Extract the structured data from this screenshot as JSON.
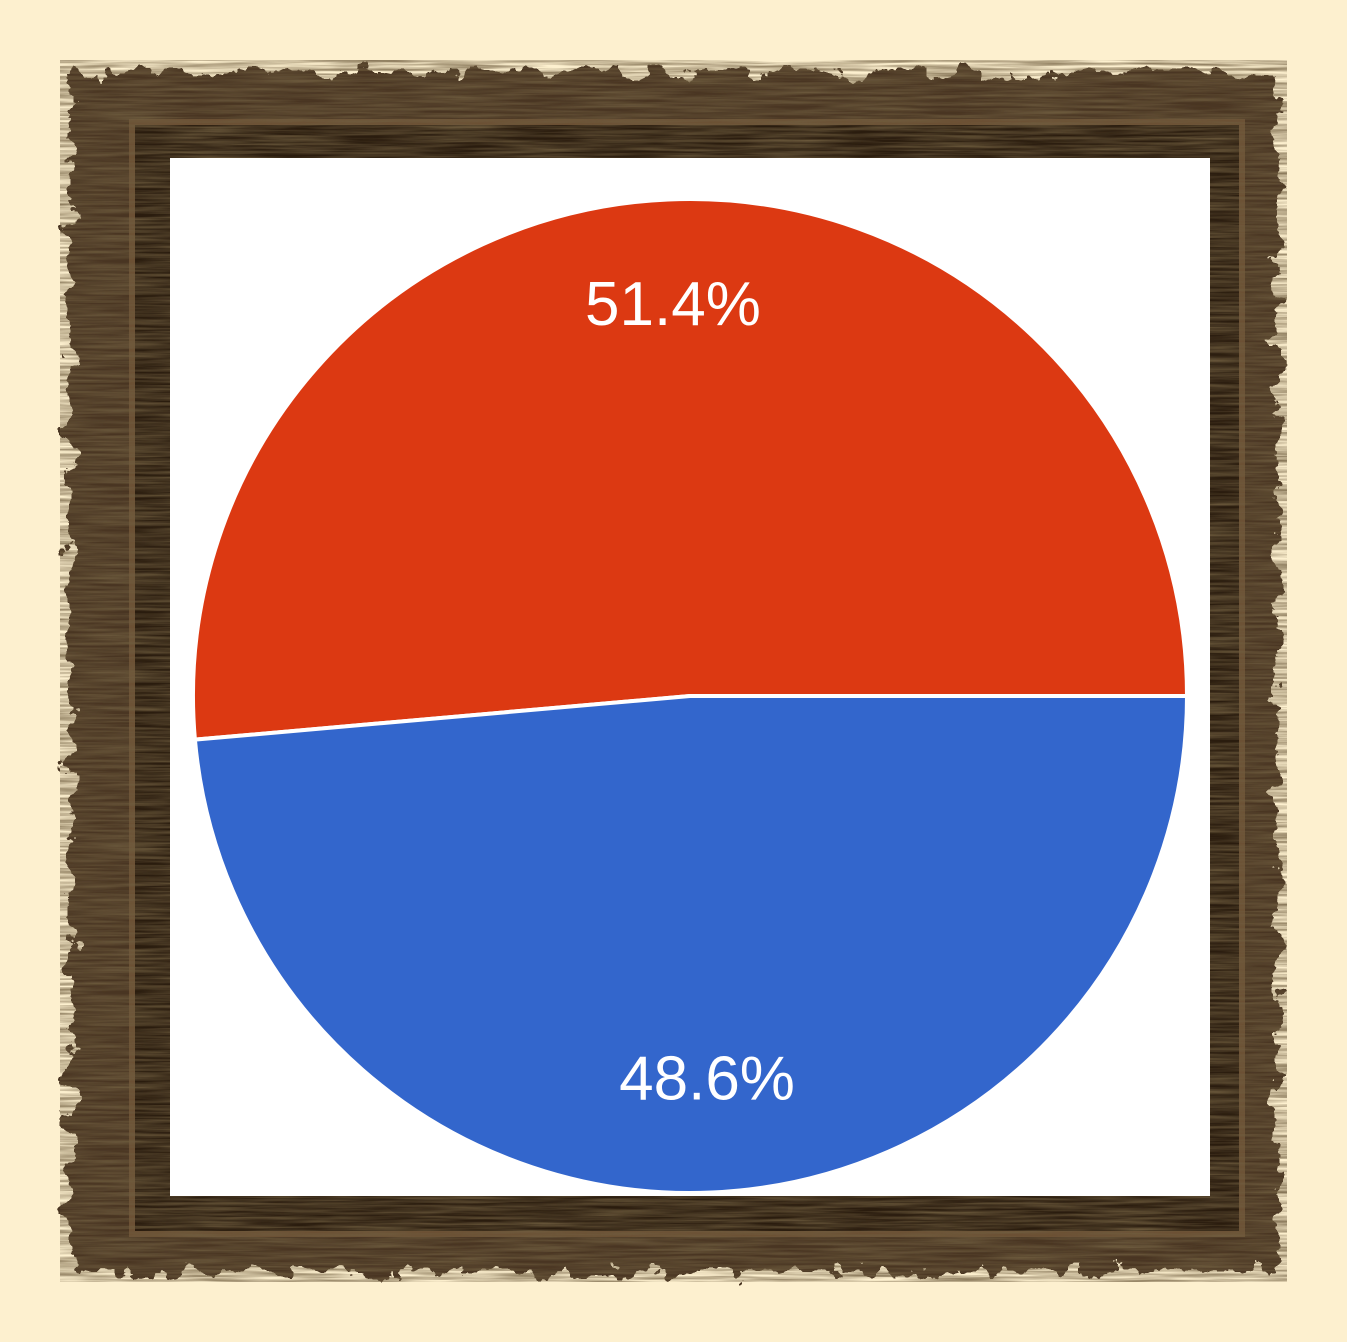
{
  "colors": {
    "page_background": "#fdf0cf",
    "frame_wood_dark": "#2a1c0e",
    "frame_wood_mid": "#4a3420",
    "frame_wood_light": "#6b5034",
    "canvas": "#ffffff",
    "slice_border": "#ffffff"
  },
  "chart_data": {
    "type": "pie",
    "title": "",
    "start_angle_deg": 90,
    "direction": "counterclockwise",
    "legend": "none",
    "slices": [
      {
        "value": 51.4,
        "label": "51.4%",
        "color": "#dc3912"
      },
      {
        "value": 48.6,
        "label": "48.6%",
        "color": "#3366cc"
      }
    ]
  }
}
